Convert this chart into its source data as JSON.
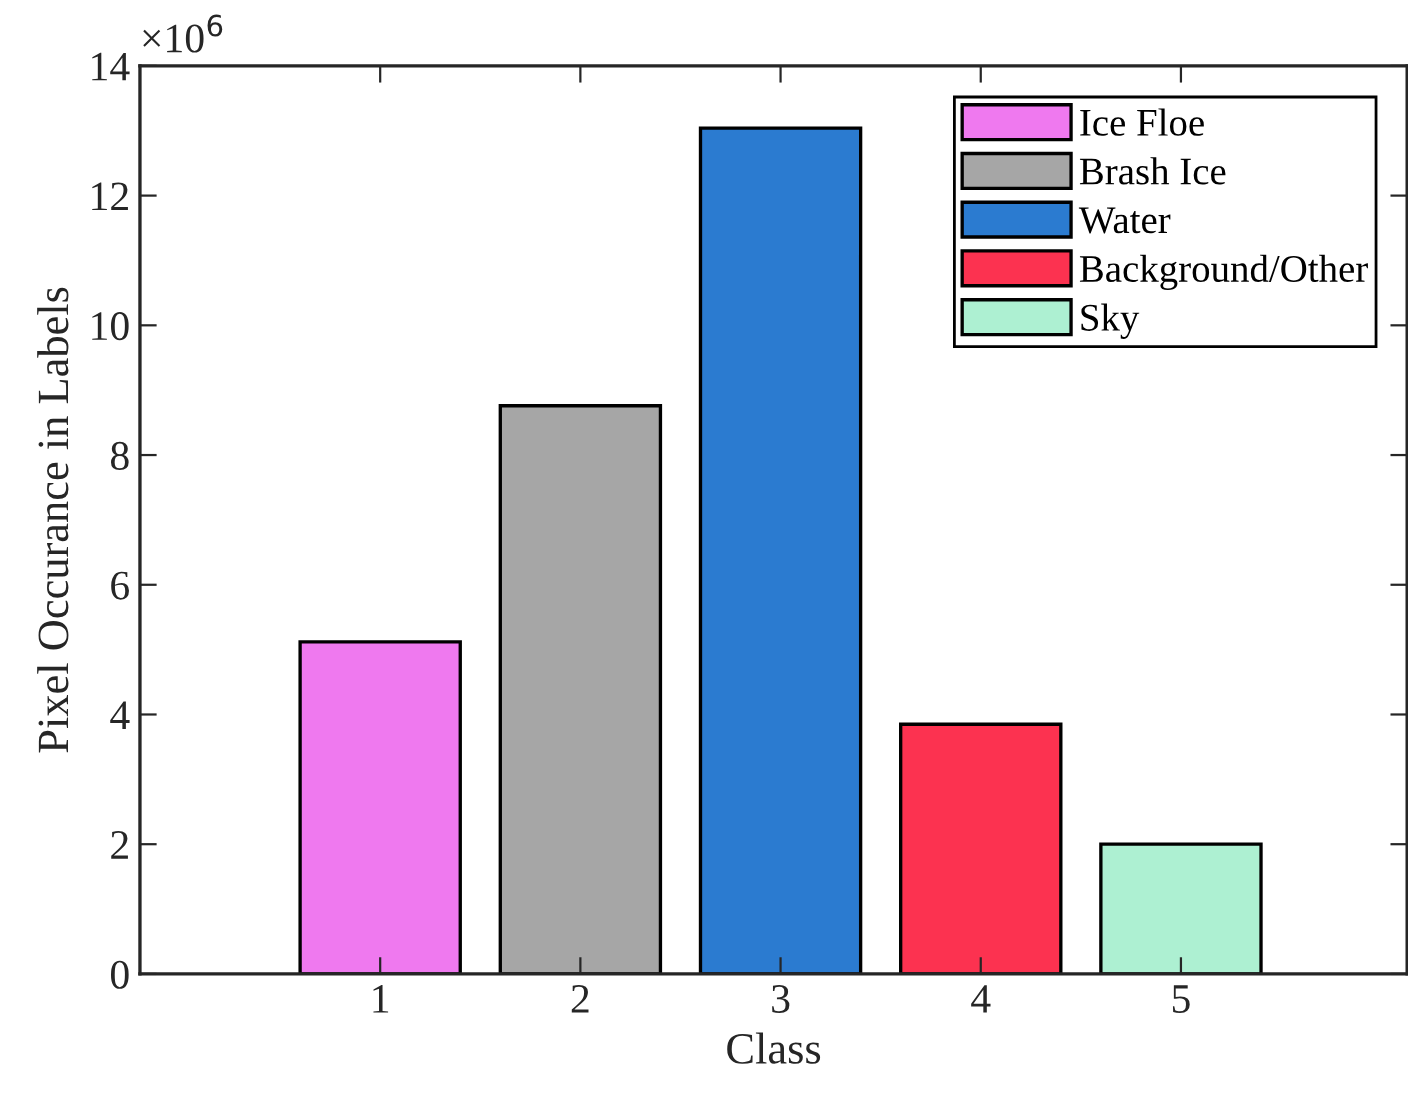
{
  "chart_data": {
    "type": "bar",
    "xlabel": "Class",
    "ylabel": "Pixel Occurance in Labels",
    "annotations": [
      "×10$^{6}$"
    ],
    "series": [
      {
        "name": "Ice Floe",
        "color": "#ef79ef",
        "x": [
          1
        ],
        "values": [
          5.12
        ]
      },
      {
        "name": "Brash Ice",
        "color": "#a6a6a6",
        "x": [
          2
        ],
        "values": [
          8.76
        ]
      },
      {
        "name": "Water",
        "color": "#2b7bd0",
        "x": [
          3
        ],
        "values": [
          13.04
        ]
      },
      {
        "name": "Background/Other",
        "color": "#fc3250",
        "x": [
          4
        ],
        "values": [
          3.85
        ]
      },
      {
        "name": "Sky",
        "color": "#adf0d2",
        "x": [
          5
        ],
        "values": [
          2.0
        ]
      }
    ],
    "xlim": [
      -0.2,
      6.13
    ],
    "xticks": [
      1,
      2,
      3,
      4,
      5
    ],
    "ylim": [
      0,
      14
    ],
    "yticks": [
      0,
      2,
      4,
      6,
      8,
      10,
      12,
      14
    ],
    "grid": false,
    "legend": "top right"
  }
}
